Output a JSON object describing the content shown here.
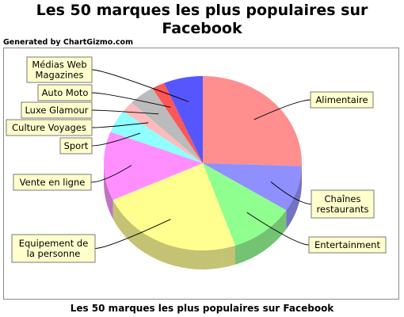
{
  "title_line1": "Les 50 marques les plus populaires sur",
  "title_line2": "Facebook",
  "generated_by": "Generated by ChartGizmo.com",
  "footer_title": "Les 50 marques les plus populaires sur Facebook",
  "chart_data": {
    "type": "pie",
    "title": "Les 50 marques les plus populaires sur Facebook",
    "style": "3d",
    "slices": [
      {
        "label": "Alimentaire",
        "value": 12,
        "color": "#ff7f7f"
      },
      {
        "label": "Chaînes restaurants",
        "value": 4,
        "color": "#7f7fff"
      },
      {
        "label": "Entertainment",
        "value": 5,
        "color": "#7fff7f"
      },
      {
        "label": "",
        "value": 1,
        "color": "#ffff7f"
      },
      {
        "label": "Equipement de la personne",
        "value": 10,
        "color": "#ffff7f"
      },
      {
        "label": "Vente en ligne",
        "value": 6,
        "color": "#ff7fff"
      },
      {
        "label": "Sport",
        "value": 2,
        "color": "#7fffff"
      },
      {
        "label": "Culture Voyages",
        "value": 1,
        "color": "#ffb2b2"
      },
      {
        "label": "Luxe Glamour",
        "value": 2,
        "color": "#b2b2b2"
      },
      {
        "label": "Auto Moto",
        "value": 1,
        "color": "#ff3f3f"
      },
      {
        "label": "Médias Web Magazines",
        "value": 3,
        "color": "#3f3fff"
      }
    ]
  }
}
